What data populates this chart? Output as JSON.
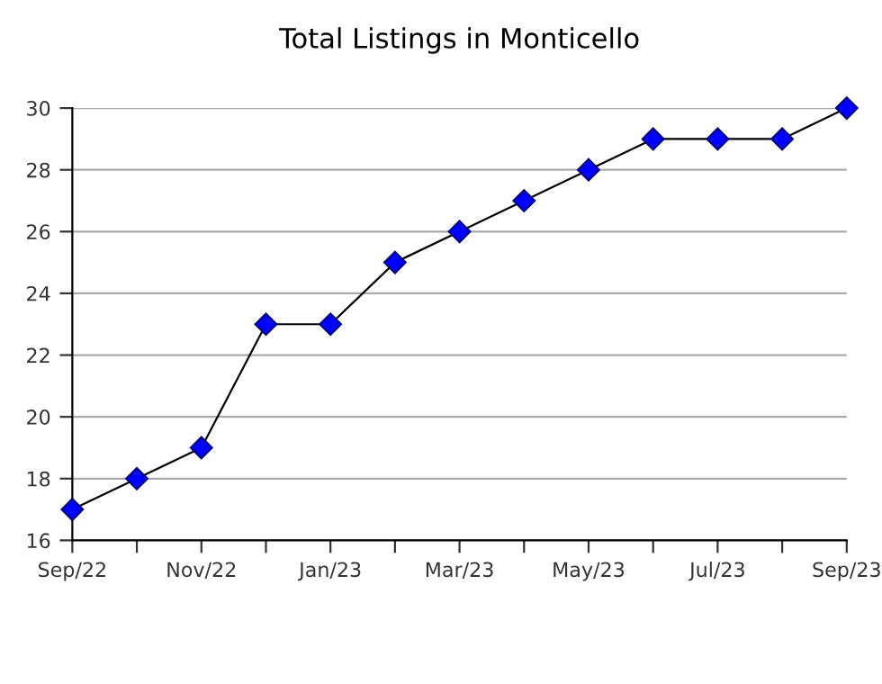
{
  "chart_data": {
    "type": "line",
    "title": "Total Listings in Monticello",
    "categories": [
      "Sep/22",
      null,
      "Nov/22",
      null,
      "Jan/23",
      null,
      "Mar/23",
      null,
      "May/23",
      null,
      "Jul/23",
      null,
      "Sep/23"
    ],
    "series": [
      {
        "color": "#0000ff",
        "values": [
          17,
          18,
          19,
          23,
          23,
          25,
          26,
          27,
          28,
          29,
          29,
          29,
          30
        ]
      }
    ],
    "ylim": [
      16,
      30
    ],
    "yticks": [
      16,
      18,
      20,
      22,
      24,
      26,
      28,
      30
    ],
    "grid": "y",
    "marker": "diamond",
    "line_style": "solid"
  }
}
